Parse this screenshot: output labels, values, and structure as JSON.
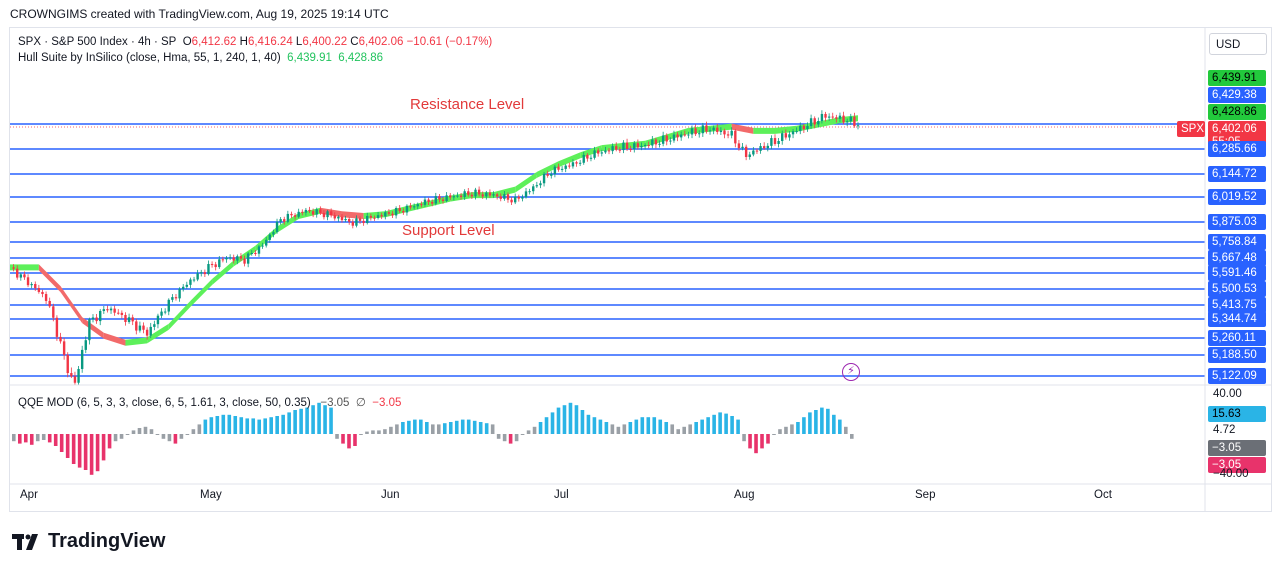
{
  "header": {
    "text": "CROWNGIMS created with TradingView.com, Aug 19, 2025 19:14 UTC"
  },
  "legend": {
    "symbol": "SPX · S&P 500 Index · 4h · SP",
    "o_label": "O",
    "o_value": "6,412.62",
    "h_label": "H",
    "h_value": "6,416.24",
    "l_label": "L",
    "l_value": "6,400.22",
    "c_label": "C",
    "c_value": "6,402.06",
    "change": "−10.61 (−0.17%)",
    "hull_label": "Hull Suite by InSilico (close, Hma, 55, 1, 240, 1, 40)",
    "hull_v1": "6,439.91",
    "hull_v2": "6,428.86",
    "qqe_label": "QQE MOD (6, 5, 3, 3, close, 6, 5, 1.61, 3, close, 50, 0.35)",
    "qqe_v1": "−3.05",
    "qqe_sym": "∅",
    "qqe_v2": "−3.05"
  },
  "currency": "USD",
  "annotations": {
    "resistance": "Resistance Level",
    "support": "Support Level"
  },
  "brand": {
    "name": "TradingView"
  },
  "colors": {
    "level_line": "#2962ff",
    "hull_up": "#5df05a",
    "hull_down": "#f26a6a",
    "candle_up": "#089981",
    "candle_down": "#f23645",
    "qqe_blue": "#2ab4e6",
    "qqe_gray": "#9aa0a6",
    "qqe_red": "#e8336b"
  },
  "chart_data": [
    {
      "type": "line",
      "title": "SPX · S&P 500 Index · 4h · SP",
      "x_months": [
        "Apr",
        "May",
        "Jun",
        "Jul",
        "Aug",
        "Sep",
        "Oct"
      ],
      "price_levels": [
        6285.66,
        6144.72,
        6019.52,
        5875.03,
        5758.84,
        5667.48,
        5591.46,
        5500.53,
        5413.75,
        5344.74,
        5260.11,
        5188.5,
        5122.09
      ],
      "resistance_level": 6402.06,
      "price_axis_labels": [
        "6,439.91",
        "6,429.38",
        "6,428.86",
        "6,402.06",
        "6,285.66",
        "6,144.72",
        "6,019.52",
        "5,875.03",
        "5,758.84",
        "5,667.48",
        "5,591.46",
        "5,500.53",
        "5,413.75",
        "5,344.74",
        "5,260.11",
        "5,188.50",
        "5,122.09"
      ],
      "last_price": {
        "label": "SPX",
        "value": "6,402.06",
        "countdown": "55:05"
      },
      "price_path": [
        [
          0,
          5620
        ],
        [
          5,
          5540
        ],
        [
          10,
          5450
        ],
        [
          15,
          5180
        ],
        [
          18,
          5080
        ],
        [
          22,
          5330
        ],
        [
          27,
          5400
        ],
        [
          32,
          5350
        ],
        [
          38,
          5280
        ],
        [
          45,
          5450
        ],
        [
          50,
          5550
        ],
        [
          55,
          5620
        ],
        [
          60,
          5670
        ],
        [
          65,
          5660
        ],
        [
          70,
          5740
        ],
        [
          75,
          5890
        ],
        [
          82,
          5940
        ],
        [
          88,
          5920
        ],
        [
          95,
          5870
        ],
        [
          100,
          5900
        ],
        [
          108,
          5940
        ],
        [
          115,
          5990
        ],
        [
          122,
          6020
        ],
        [
          128,
          6040
        ],
        [
          134,
          6030
        ],
        [
          140,
          6000
        ],
        [
          145,
          6070
        ],
        [
          150,
          6160
        ],
        [
          156,
          6200
        ],
        [
          162,
          6260
        ],
        [
          168,
          6290
        ],
        [
          175,
          6300
        ],
        [
          182,
          6330
        ],
        [
          188,
          6360
        ],
        [
          194,
          6380
        ],
        [
          200,
          6350
        ],
        [
          204,
          6250
        ],
        [
          208,
          6290
        ],
        [
          214,
          6340
        ],
        [
          220,
          6390
        ],
        [
          226,
          6440
        ],
        [
          232,
          6420
        ],
        [
          235,
          6402
        ]
      ],
      "hull_path": [
        [
          0,
          5620
        ],
        [
          8,
          5620
        ],
        [
          14,
          5500
        ],
        [
          20,
          5340
        ],
        [
          26,
          5270
        ],
        [
          32,
          5240
        ],
        [
          38,
          5250
        ],
        [
          44,
          5310
        ],
        [
          50,
          5420
        ],
        [
          56,
          5540
        ],
        [
          62,
          5640
        ],
        [
          68,
          5720
        ],
        [
          74,
          5830
        ],
        [
          80,
          5910
        ],
        [
          86,
          5940
        ],
        [
          92,
          5920
        ],
        [
          98,
          5910
        ],
        [
          104,
          5920
        ],
        [
          110,
          5950
        ],
        [
          116,
          5980
        ],
        [
          122,
          6010
        ],
        [
          128,
          6030
        ],
        [
          134,
          6030
        ],
        [
          140,
          6060
        ],
        [
          146,
          6140
        ],
        [
          152,
          6200
        ],
        [
          158,
          6250
        ],
        [
          164,
          6290
        ],
        [
          170,
          6300
        ],
        [
          176,
          6310
        ],
        [
          182,
          6340
        ],
        [
          188,
          6370
        ],
        [
          194,
          6380
        ],
        [
          200,
          6390
        ],
        [
          206,
          6370
        ],
        [
          212,
          6370
        ],
        [
          218,
          6380
        ],
        [
          224,
          6400
        ],
        [
          230,
          6420
        ],
        [
          235,
          6429
        ]
      ]
    },
    {
      "type": "bar",
      "title": "QQE MOD (6, 5, 3, 3, close, 6, 5, 1.61, 3, close, 50, 0.35)",
      "y_axis_labels": [
        "40.00",
        "15.63",
        "4.72",
        "−3.05",
        "−3.05",
        "−40.00"
      ],
      "ylim": [
        -40,
        40
      ],
      "values": [
        -6,
        -8,
        -7,
        -9,
        -6,
        -5,
        -7,
        -10,
        -15,
        -20,
        -25,
        -28,
        -30,
        -34,
        -31,
        -22,
        -12,
        -6,
        -4,
        0,
        3,
        5,
        6,
        4,
        0,
        -4,
        -6,
        -8,
        -4,
        0,
        4,
        8,
        12,
        14,
        15,
        16,
        16,
        15,
        14,
        13,
        13,
        12,
        13,
        14,
        15,
        16,
        18,
        20,
        21,
        22,
        24,
        26,
        24,
        22,
        -4,
        -8,
        -12,
        -10,
        0,
        2,
        3,
        3,
        4,
        6,
        8,
        10,
        11,
        12,
        12,
        10,
        8,
        8,
        9,
        10,
        11,
        12,
        12,
        11,
        10,
        9,
        8,
        -4,
        -6,
        -8,
        -6,
        0,
        3,
        6,
        10,
        14,
        18,
        22,
        24,
        26,
        24,
        20,
        16,
        14,
        12,
        10,
        8,
        6,
        8,
        10,
        12,
        14,
        14,
        14,
        12,
        10,
        8,
        4,
        6,
        8,
        10,
        12,
        14,
        16,
        18,
        17,
        15,
        12,
        -6,
        -12,
        -16,
        -12,
        -8,
        0,
        4,
        6,
        8,
        10,
        14,
        18,
        20,
        22,
        21,
        16,
        12,
        6,
        -4
      ]
    }
  ]
}
